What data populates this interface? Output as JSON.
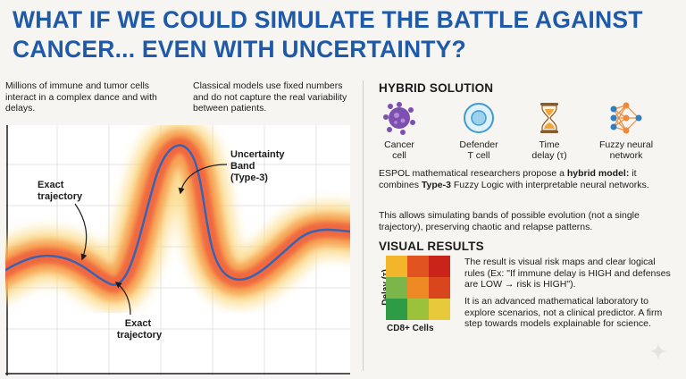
{
  "title": "WHAT IF WE COULD SIMULATE THE BATTLE AGAINST CANCER... EVEN WITH UNCERTAINTY?",
  "intro_left": "Millions of immune and tumor cells interact in a complex dance and with delays.",
  "intro_right": "Classical models use fixed numbers and do not capture the real variability between patients.",
  "chart": {
    "label_exact_top": [
      "Exact",
      "trajectory"
    ],
    "label_uncertainty": [
      "Uncertainty",
      "Band",
      "(Type-3)"
    ],
    "label_exact_bottom": [
      "Exact",
      "trajectory"
    ],
    "colors": {
      "line": "#3a63b0",
      "band_outer": "#fbd77a",
      "band_mid": "#f5984a",
      "band_inner": "#f0623c"
    }
  },
  "hybrid": {
    "heading": "HYBRID SOLUTION",
    "icons": [
      {
        "name": "cancer-cell-icon",
        "label": [
          "Cancer",
          "cell"
        ]
      },
      {
        "name": "t-cell-icon",
        "label": [
          "Defender",
          "T cell"
        ]
      },
      {
        "name": "hourglass-icon",
        "label": [
          "Time",
          "delay (τ)"
        ]
      },
      {
        "name": "neural-network-icon",
        "label": [
          "Fuzzy neural",
          "network"
        ]
      }
    ],
    "para1_pre": "ESPOL mathematical researchers propose a ",
    "para1_bold1": "hybrid model:",
    "para1_mid": " it combines ",
    "para1_bold2": "Type-3",
    "para1_post": " Fuzzy Logic with interpretable neural networks.",
    "para2": "This allows simulating bands of possible evolution (not a single trajectory), preserving chaotic and relapse patterns."
  },
  "visual": {
    "heading": "VISUAL RESULTS",
    "y_axis": "Delay (τ)",
    "x_axis": "CD8+ Cells",
    "heatmap_colors": [
      "#f3b62a",
      "#e2541f",
      "#c9231a",
      "#7ab64a",
      "#ee8a24",
      "#d9451d",
      "#2e9c47",
      "#9cc23c",
      "#e8c93a"
    ],
    "para1": "The result is visual risk maps and clear logical rules (Ex: \"If immune delay is HIGH and defenses are LOW → risk is HIGH\").",
    "para2": "It is an advanced mathematical laboratory to explore scenarios, not a clinical predictor. A firm step towards models explainable for science."
  }
}
